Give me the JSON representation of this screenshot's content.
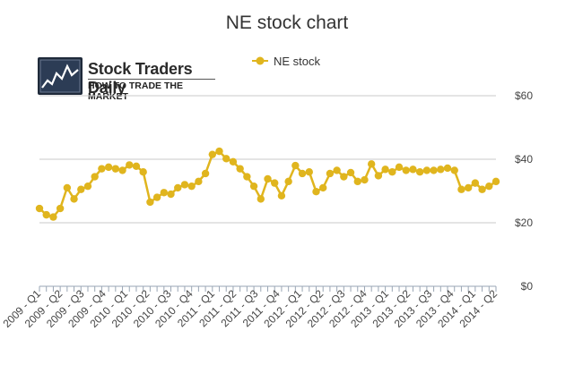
{
  "chart_data": {
    "type": "line",
    "title": "NE stock chart",
    "legend": {
      "position": "top-center",
      "entries": [
        "NE stock"
      ]
    },
    "series": [
      {
        "name": "NE stock",
        "color": "#e0b51e",
        "values": [
          24.5,
          22.5,
          21.8,
          24.5,
          31,
          27.5,
          30.5,
          31.5,
          34.5,
          37,
          37.5,
          37,
          36.5,
          38.2,
          37.8,
          36,
          26.5,
          28,
          29.5,
          29,
          31,
          32,
          31.5,
          33,
          35.5,
          41.5,
          42.5,
          40.2,
          39.2,
          37,
          34.5,
          31.5,
          27.5,
          33.8,
          32.5,
          28.5,
          33,
          38,
          35.5,
          36,
          29.8,
          31,
          35.5,
          36.5,
          34.5,
          35.8,
          33,
          33.5,
          38.5,
          34.8,
          36.8,
          36,
          37.5,
          36.5,
          36.8,
          36,
          36.5,
          36.5,
          36.8,
          37.2,
          36.5,
          30.5,
          31,
          32.5,
          30.5,
          31.5,
          33
        ]
      }
    ],
    "x_tick_labels": [
      "2009 - Q1",
      "2009 - Q2",
      "2009 - Q3",
      "2009 - Q4",
      "2010 - Q1",
      "2010 - Q2",
      "2010 - Q3",
      "2010 - Q4",
      "2011 - Q1",
      "2011 - Q2",
      "2011 - Q3",
      "2011 - Q4",
      "2012 - Q1",
      "2012 - Q2",
      "2012 - Q3",
      "2012 - Q4",
      "2013 - Q1",
      "2013 - Q2",
      "2013 - Q3",
      "2013 - Q4",
      "2014 - Q1",
      "2014 - Q2"
    ],
    "y_tick_labels": [
      "$0",
      "$20",
      "$40",
      "$60"
    ],
    "y_ticks": [
      0,
      20,
      40,
      60
    ],
    "ylim": [
      0,
      60
    ],
    "y_axis_side": "right",
    "grid": true
  },
  "logo": {
    "name": "Stock Traders Daily",
    "tagline": "HOW TO TRADE THE MARKET"
  }
}
